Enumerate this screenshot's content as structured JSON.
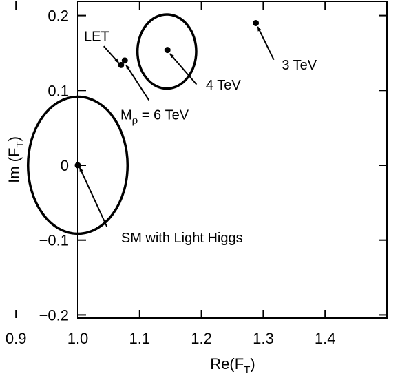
{
  "chart_data": {
    "type": "scatter",
    "title": "",
    "xlabel": {
      "main": "Re(F",
      "sub": "T",
      "close": ")"
    },
    "ylabel": {
      "main": "Im (F",
      "sub": "T",
      "close": ")"
    },
    "xlim": [
      0.9,
      1.4
    ],
    "ylim": [
      -0.2,
      0.22
    ],
    "xticks": [
      0.9,
      1.0,
      1.1,
      1.2,
      1.3,
      1.4
    ],
    "xtick_labels": [
      "0.9",
      "1.0",
      "1.1",
      "1.2",
      "1.3",
      "1.4"
    ],
    "yticks": [
      -0.2,
      -0.1,
      0,
      0.1,
      0.2
    ],
    "ytick_labels": [
      "−0.2",
      "−0.1",
      "0",
      "0.1",
      "0.2"
    ],
    "grid": false,
    "points": [
      {
        "x": 1.0,
        "y": 0.0
      },
      {
        "x": 1.145,
        "y": 0.154
      },
      {
        "x": 1.288,
        "y": 0.19
      },
      {
        "x": 1.07,
        "y": 0.134
      },
      {
        "x": 1.076,
        "y": 0.14
      }
    ],
    "ellipses": [
      {
        "cx": 1.0,
        "cy": 0.0,
        "rx": 0.0805,
        "ry": 0.0915
      },
      {
        "cx": 1.144,
        "cy": 0.152,
        "rx": 0.0475,
        "ry": 0.0495
      }
    ],
    "annotations": [
      {
        "text": "SM with Light Higgs",
        "text_x": 1.07,
        "text_y": -0.103,
        "arrow_from": [
          1.047,
          -0.082
        ],
        "arrow_to": [
          1.003,
          -0.003
        ]
      },
      {
        "text": "4 TeV",
        "text_x": 1.207,
        "text_y": 0.101,
        "arrow_from": [
          1.192,
          0.108
        ],
        "arrow_to": [
          1.149,
          0.149
        ]
      },
      {
        "text": "3 TeV",
        "text_x": 1.33,
        "text_y": 0.128,
        "arrow_from": [
          1.317,
          0.141
        ],
        "arrow_to": [
          1.291,
          0.185
        ]
      },
      {
        "text": "LET",
        "text_x": 1.01,
        "text_y": 0.166,
        "arrow_from": [
          1.042,
          0.159
        ],
        "arrow_to": [
          1.066,
          0.137
        ]
      },
      {
        "text": "M",
        "text_x": 1.069,
        "text_y": 0.061,
        "sub": "ρ",
        "tail": " = 6 TeV",
        "arrow_from": [
          1.115,
          0.087
        ],
        "arrow_to": [
          1.078,
          0.134
        ]
      }
    ]
  }
}
